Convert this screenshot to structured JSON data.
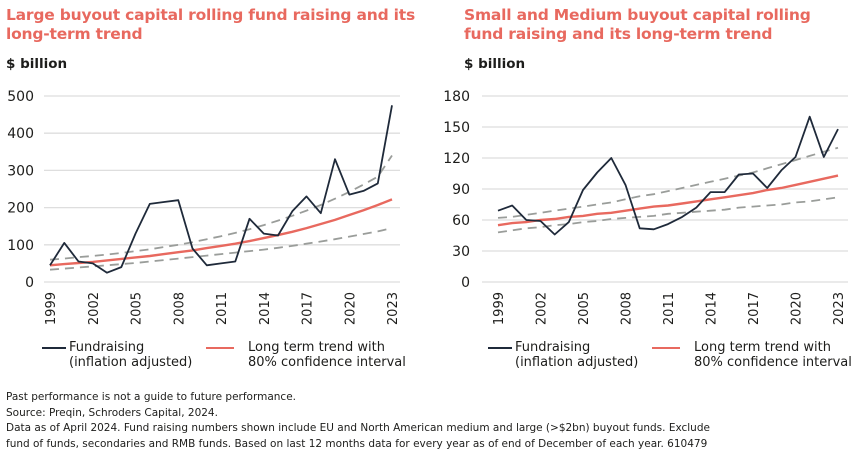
{
  "colors": {
    "title": "#e8695f",
    "fundraising": "#1f2a3a",
    "trend": "#e8695f",
    "confidence": "#9a9d9a",
    "grid": "#dedede"
  },
  "legend": {
    "fundraising_line1": "Fundraising",
    "fundraising_line2": "(inflation adjusted)",
    "trend_line1": "Long term trend with",
    "trend_line2": "80% confidence interval"
  },
  "footer": {
    "line1": "Past performance is not a guide to future performance.",
    "line2": "Source: Preqin, Schroders Capital, 2024.",
    "line3": "Data as of April 2024. Fund raising numbers shown include EU and North American medium and large (>$2bn) buyout funds. Exclude",
    "line4": "fund of funds, secondaries and RMB funds. Based on last 12 months data for every year as of end of December of each year. 610479"
  },
  "chart_data": [
    {
      "type": "line",
      "title": "Large buyout capital rolling fund raising and its long-term trend",
      "ylabel": "$ billion",
      "xlabel": "",
      "ylim": [
        0,
        500
      ],
      "yticks": [
        0,
        100,
        200,
        300,
        400,
        500
      ],
      "xlim": [
        1999,
        2023
      ],
      "xticks": [
        "1999",
        "2002",
        "2005",
        "2008",
        "2011",
        "2014",
        "2017",
        "2020",
        "2023"
      ],
      "grid": true,
      "legend_position": "bottom",
      "x": [
        1999,
        2000,
        2001,
        2002,
        2003,
        2004,
        2005,
        2006,
        2007,
        2008,
        2009,
        2010,
        2011,
        2012,
        2013,
        2014,
        2015,
        2016,
        2017,
        2018,
        2019,
        2020,
        2021,
        2022,
        2023
      ],
      "series": [
        {
          "name": "Fundraising (inflation adjusted)",
          "style": "solid",
          "values": [
            45,
            105,
            55,
            50,
            25,
            40,
            130,
            210,
            215,
            220,
            90,
            45,
            50,
            55,
            170,
            130,
            125,
            190,
            230,
            185,
            330,
            235,
            245,
            265,
            475
          ]
        },
        {
          "name": "Long term trend",
          "style": "solid",
          "values": [
            45,
            48,
            51,
            54,
            58,
            62,
            66,
            70,
            75,
            80,
            85,
            91,
            97,
            103,
            110,
            118,
            126,
            135,
            145,
            156,
            167,
            180,
            193,
            207,
            222
          ]
        },
        {
          "name": "80% confidence upper",
          "style": "dashed",
          "values": [
            60,
            63,
            67,
            70,
            74,
            78,
            83,
            88,
            94,
            100,
            107,
            115,
            123,
            132,
            142,
            153,
            165,
            178,
            192,
            207,
            224,
            242,
            262,
            283,
            340
          ]
        },
        {
          "name": "80% confidence lower",
          "style": "dashed",
          "values": [
            33,
            36,
            39,
            42,
            45,
            48,
            51,
            55,
            59,
            63,
            67,
            71,
            75,
            79,
            83,
            87,
            92,
            97,
            103,
            109,
            115,
            122,
            129,
            136,
            145
          ]
        }
      ]
    },
    {
      "type": "line",
      "title": "Small and Medium buyout capital rolling fund raising and its long-term trend",
      "ylabel": "$ billion",
      "xlabel": "",
      "ylim": [
        0,
        180
      ],
      "yticks": [
        0,
        30,
        60,
        90,
        120,
        150,
        180
      ],
      "xlim": [
        1999,
        2023
      ],
      "xticks": [
        "1999",
        "2002",
        "2005",
        "2008",
        "2011",
        "2014",
        "2017",
        "2020",
        "2023"
      ],
      "grid": true,
      "legend_position": "bottom",
      "x": [
        1999,
        2000,
        2001,
        2002,
        2003,
        2004,
        2005,
        2006,
        2007,
        2008,
        2009,
        2010,
        2011,
        2012,
        2013,
        2014,
        2015,
        2016,
        2017,
        2018,
        2019,
        2020,
        2021,
        2022,
        2023
      ],
      "series": [
        {
          "name": "Fundraising (inflation adjusted)",
          "style": "solid",
          "values": [
            69,
            74,
            60,
            59,
            46,
            58,
            89,
            106,
            120,
            94,
            52,
            51,
            56,
            63,
            72,
            87,
            87,
            104,
            105,
            91,
            108,
            121,
            160,
            121,
            148
          ]
        },
        {
          "name": "Long term trend",
          "style": "solid",
          "values": [
            55,
            57,
            58,
            60,
            61,
            63,
            64,
            66,
            67,
            69,
            71,
            73,
            74,
            76,
            78,
            80,
            82,
            84,
            86,
            89,
            91,
            94,
            97,
            100,
            103
          ]
        },
        {
          "name": "80% confidence upper",
          "style": "dashed",
          "values": [
            62,
            63,
            65,
            67,
            69,
            71,
            73,
            75,
            77,
            80,
            83,
            85,
            88,
            91,
            94,
            97,
            100,
            103,
            106,
            110,
            114,
            118,
            122,
            126,
            130
          ]
        },
        {
          "name": "80% confidence lower",
          "style": "dashed",
          "values": [
            48,
            50,
            52,
            53,
            55,
            56,
            58,
            59,
            61,
            62,
            63,
            64,
            66,
            67,
            68,
            69,
            70,
            72,
            73,
            74,
            75,
            77,
            78,
            80,
            82
          ]
        }
      ]
    }
  ]
}
